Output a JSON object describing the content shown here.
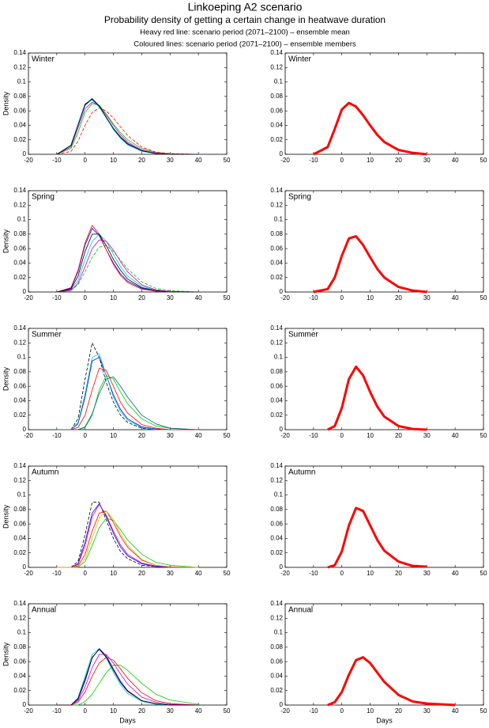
{
  "header": {
    "title": "Linkoeping A2 scenario",
    "subtitle": "Probability density of getting a certain change in heatwave duration",
    "notes": [
      "Heavy red line: scenario period (2071–2100) – ensemble mean",
      "Coloured lines: scenario period (2071–2100) – ensemble members"
    ]
  },
  "chart_data": [
    {
      "type": "line",
      "label": "Winter",
      "ylabel": "Density",
      "x": [
        -10,
        -5,
        -2.5,
        0,
        2.5,
        5,
        7.5,
        10,
        12.5,
        15,
        20,
        25,
        30,
        40
      ],
      "xlim": [
        -20,
        50
      ],
      "ylim": [
        0,
        0.14
      ],
      "xticks": [
        -20,
        -10,
        0,
        10,
        20,
        30,
        40,
        50
      ],
      "yticks": [
        0,
        0.02,
        0.04,
        0.06,
        0.08,
        0.1,
        0.12,
        0.14
      ],
      "series": [
        {
          "color": "#0000ff",
          "values": [
            0,
            0.012,
            0.04,
            0.068,
            0.076,
            0.066,
            0.05,
            0.035,
            0.023,
            0.014,
            0.005,
            0.001,
            0,
            0
          ]
        },
        {
          "color": "#00cc00",
          "values": [
            0,
            0.008,
            0.03,
            0.058,
            0.07,
            0.068,
            0.056,
            0.042,
            0.03,
            0.02,
            0.008,
            0.003,
            0.001,
            0
          ]
        },
        {
          "color": "#ff0000",
          "dash": true,
          "values": [
            0,
            0.004,
            0.018,
            0.04,
            0.058,
            0.064,
            0.06,
            0.05,
            0.038,
            0.026,
            0.01,
            0.003,
            0.001,
            0
          ]
        },
        {
          "color": "#00cccc",
          "values": [
            0,
            0.013,
            0.042,
            0.07,
            0.075,
            0.065,
            0.05,
            0.034,
            0.022,
            0.013,
            0.004,
            0.001,
            0,
            0
          ]
        },
        {
          "color": "#cc00cc",
          "values": [
            0,
            0.01,
            0.036,
            0.063,
            0.072,
            0.067,
            0.054,
            0.04,
            0.027,
            0.017,
            0.006,
            0.002,
            0,
            0
          ]
        },
        {
          "color": "#000000",
          "values": [
            0,
            0.012,
            0.04,
            0.069,
            0.077,
            0.067,
            0.051,
            0.036,
            0.024,
            0.015,
            0.005,
            0.001,
            0,
            0
          ]
        }
      ]
    },
    {
      "type": "line",
      "label": "Winter",
      "x": [
        -10,
        -5,
        -2.5,
        0,
        2.5,
        5,
        7.5,
        10,
        12.5,
        15,
        20,
        25,
        30,
        40
      ],
      "xlim": [
        -20,
        50
      ],
      "ylim": [
        0,
        0.14
      ],
      "xticks": [
        -20,
        -10,
        0,
        10,
        20,
        30,
        40,
        50
      ],
      "yticks": [
        0,
        0.02,
        0.04,
        0.06,
        0.08,
        0.1,
        0.12,
        0.14
      ],
      "series": [
        {
          "color": "#ff0000",
          "width": 3,
          "values": [
            0,
            0.01,
            0.035,
            0.062,
            0.071,
            0.066,
            0.054,
            0.04,
            0.027,
            0.017,
            0.006,
            0.002,
            0,
            null
          ]
        }
      ]
    },
    {
      "type": "line",
      "label": "Spring",
      "ylabel": "Density",
      "x": [
        -10,
        -5,
        -2.5,
        0,
        2.5,
        5,
        7.5,
        10,
        12.5,
        15,
        20,
        25,
        30,
        40
      ],
      "xlim": [
        -20,
        50
      ],
      "ylim": [
        0,
        0.14
      ],
      "xticks": [
        -20,
        -10,
        0,
        10,
        20,
        30,
        40,
        50
      ],
      "yticks": [
        0,
        0.02,
        0.04,
        0.06,
        0.08,
        0.1,
        0.12,
        0.14
      ],
      "series": [
        {
          "color": "#0000ff",
          "values": [
            0,
            0.005,
            0.028,
            0.065,
            0.088,
            0.078,
            0.058,
            0.04,
            0.025,
            0.015,
            0.005,
            0.001,
            0,
            0
          ]
        },
        {
          "color": "#00cc00",
          "dash": true,
          "values": [
            0,
            0.002,
            0.01,
            0.028,
            0.048,
            0.062,
            0.064,
            0.056,
            0.044,
            0.032,
            0.014,
            0.005,
            0.002,
            0
          ]
        },
        {
          "color": "#ff0000",
          "values": [
            0,
            0.006,
            0.03,
            0.068,
            0.092,
            0.08,
            0.058,
            0.038,
            0.023,
            0.013,
            0.004,
            0.001,
            0,
            0
          ]
        },
        {
          "color": "#00cccc",
          "values": [
            0,
            0.003,
            0.016,
            0.045,
            0.07,
            0.08,
            0.07,
            0.052,
            0.035,
            0.022,
            0.008,
            0.002,
            0,
            0
          ]
        },
        {
          "color": "#cc00cc",
          "values": [
            0,
            0.002,
            0.012,
            0.035,
            0.06,
            0.072,
            0.07,
            0.058,
            0.042,
            0.028,
            0.01,
            0.003,
            0.001,
            0
          ]
        },
        {
          "color": "#000000",
          "values": [
            0,
            0.004,
            0.022,
            0.056,
            0.08,
            0.08,
            0.064,
            0.045,
            0.03,
            0.018,
            0.006,
            0.002,
            0,
            0
          ]
        }
      ]
    },
    {
      "type": "line",
      "label": "Spring",
      "x": [
        -10,
        -5,
        -2.5,
        0,
        2.5,
        5,
        7.5,
        10,
        12.5,
        15,
        20,
        25,
        30,
        40
      ],
      "xlim": [
        -20,
        50
      ],
      "ylim": [
        0,
        0.14
      ],
      "xticks": [
        -20,
        -10,
        0,
        10,
        20,
        30,
        40,
        50
      ],
      "yticks": [
        0,
        0.02,
        0.04,
        0.06,
        0.08,
        0.1,
        0.12,
        0.14
      ],
      "series": [
        {
          "color": "#ff0000",
          "width": 3,
          "values": [
            0,
            0.004,
            0.02,
            0.05,
            0.074,
            0.077,
            0.065,
            0.048,
            0.032,
            0.02,
            0.007,
            0.002,
            0,
            null
          ]
        }
      ]
    },
    {
      "type": "line",
      "label": "Summer",
      "ylabel": "Density",
      "x": [
        -10,
        -5,
        -2.5,
        0,
        2.5,
        5,
        7.5,
        10,
        12.5,
        15,
        20,
        25,
        30,
        40
      ],
      "xlim": [
        -20,
        50
      ],
      "ylim": [
        0,
        0.14
      ],
      "xticks": [
        -20,
        -10,
        0,
        10,
        20,
        30,
        40,
        50
      ],
      "yticks": [
        0,
        0.02,
        0.04,
        0.06,
        0.08,
        0.1,
        0.12,
        0.14
      ],
      "series": [
        {
          "color": "#000000",
          "dash": true,
          "values": [
            0,
            0,
            0.015,
            0.07,
            0.12,
            0.1,
            0.065,
            0.038,
            0.02,
            0.01,
            0.002,
            0,
            0,
            0
          ]
        },
        {
          "color": "#0000ff",
          "values": [
            0,
            0,
            0.008,
            0.045,
            0.095,
            0.1,
            0.075,
            0.048,
            0.028,
            0.015,
            0.004,
            0.001,
            0,
            0
          ]
        },
        {
          "color": "#00cccc",
          "values": [
            0,
            0,
            0.01,
            0.05,
            0.1,
            0.105,
            0.075,
            0.045,
            0.025,
            0.013,
            0.003,
            0,
            0,
            0
          ]
        },
        {
          "color": "#00cc00",
          "values": [
            0,
            0,
            0,
            0.003,
            0.02,
            0.055,
            0.075,
            0.07,
            0.052,
            0.036,
            0.015,
            0.005,
            0.002,
            0
          ]
        },
        {
          "color": "#ff0000",
          "values": [
            0,
            0,
            0.003,
            0.02,
            0.055,
            0.085,
            0.082,
            0.06,
            0.038,
            0.023,
            0.007,
            0.002,
            0,
            0
          ]
        },
        {
          "color": "#006680",
          "values": [
            0,
            0,
            0,
            0.004,
            0.022,
            0.05,
            0.07,
            0.073,
            0.06,
            0.045,
            0.02,
            0.008,
            0.002,
            0
          ]
        }
      ]
    },
    {
      "type": "line",
      "label": "Summer",
      "x": [
        -10,
        -5,
        -2.5,
        0,
        2.5,
        5,
        7.5,
        10,
        12.5,
        15,
        20,
        25,
        30,
        40
      ],
      "xlim": [
        -20,
        50
      ],
      "ylim": [
        0,
        0.14
      ],
      "xticks": [
        -20,
        -10,
        0,
        10,
        20,
        30,
        40,
        50
      ],
      "yticks": [
        0,
        0.02,
        0.04,
        0.06,
        0.08,
        0.1,
        0.12,
        0.14
      ],
      "series": [
        {
          "color": "#ff0000",
          "width": 3,
          "values": [
            null,
            0,
            0.005,
            0.03,
            0.07,
            0.087,
            0.075,
            0.052,
            0.032,
            0.018,
            0.005,
            0.001,
            0,
            null
          ]
        }
      ]
    },
    {
      "type": "line",
      "label": "Autumn",
      "ylabel": "Density",
      "x": [
        -10,
        -5,
        -2.5,
        0,
        2.5,
        5,
        7.5,
        10,
        12.5,
        15,
        20,
        25,
        30,
        40
      ],
      "xlim": [
        -20,
        50
      ],
      "ylim": [
        0,
        0.14
      ],
      "xticks": [
        -20,
        -10,
        0,
        10,
        20,
        30,
        40,
        50
      ],
      "yticks": [
        0,
        0.02,
        0.04,
        0.06,
        0.08,
        0.1,
        0.12,
        0.14
      ],
      "series": [
        {
          "color": "#000000",
          "dash": true,
          "values": [
            0,
            0,
            0.008,
            0.045,
            0.09,
            0.09,
            0.065,
            0.04,
            0.022,
            0.012,
            0.003,
            0.001,
            0,
            0
          ]
        },
        {
          "color": "#0000ff",
          "values": [
            0,
            0,
            0.005,
            0.035,
            0.075,
            0.088,
            0.07,
            0.047,
            0.028,
            0.016,
            0.005,
            0.001,
            0,
            0
          ]
        },
        {
          "color": "#00cc00",
          "values": [
            0,
            0,
            0,
            0.008,
            0.03,
            0.055,
            0.068,
            0.065,
            0.052,
            0.038,
            0.018,
            0.007,
            0.003,
            0
          ]
        },
        {
          "color": "#ff0000",
          "values": [
            0,
            0,
            0.002,
            0.018,
            0.05,
            0.075,
            0.078,
            0.062,
            0.043,
            0.028,
            0.01,
            0.003,
            0.001,
            0
          ]
        },
        {
          "color": "#cc00cc",
          "values": [
            0,
            0,
            0.004,
            0.03,
            0.07,
            0.087,
            0.072,
            0.05,
            0.031,
            0.018,
            0.006,
            0.002,
            0,
            0
          ]
        },
        {
          "color": "#cccc00",
          "values": [
            0,
            0,
            0.001,
            0.012,
            0.04,
            0.068,
            0.078,
            0.066,
            0.047,
            0.031,
            0.011,
            0.003,
            0.001,
            0
          ]
        }
      ]
    },
    {
      "type": "line",
      "label": "Autumn",
      "x": [
        -10,
        -5,
        -2.5,
        0,
        2.5,
        5,
        7.5,
        10,
        12.5,
        15,
        20,
        25,
        30,
        40
      ],
      "xlim": [
        -20,
        50
      ],
      "ylim": [
        0,
        0.14
      ],
      "xticks": [
        -20,
        -10,
        0,
        10,
        20,
        30,
        40,
        50
      ],
      "yticks": [
        0,
        0.02,
        0.04,
        0.06,
        0.08,
        0.1,
        0.12,
        0.14
      ],
      "series": [
        {
          "color": "#ff0000",
          "width": 3,
          "values": [
            null,
            0,
            0.003,
            0.022,
            0.058,
            0.082,
            0.078,
            0.058,
            0.038,
            0.023,
            0.008,
            0.002,
            0.001,
            null
          ]
        }
      ]
    },
    {
      "type": "line",
      "label": "Annual",
      "ylabel": "Density",
      "xlabel": "Days",
      "x": [
        -10,
        -5,
        -2.5,
        0,
        2.5,
        5,
        7.5,
        10,
        12.5,
        15,
        20,
        25,
        30,
        40
      ],
      "xlim": [
        -20,
        50
      ],
      "ylim": [
        0,
        0.14
      ],
      "xticks": [
        -20,
        -10,
        0,
        10,
        20,
        30,
        40,
        50
      ],
      "yticks": [
        0,
        0.02,
        0.04,
        0.06,
        0.08,
        0.1,
        0.12,
        0.14
      ],
      "series": [
        {
          "color": "#00cccc",
          "values": [
            0,
            0,
            0.01,
            0.04,
            0.07,
            0.078,
            0.065,
            0.045,
            0.028,
            0.016,
            0.005,
            0.001,
            0,
            0
          ]
        },
        {
          "color": "#0000ff",
          "values": [
            0,
            0,
            0.008,
            0.033,
            0.065,
            0.078,
            0.068,
            0.05,
            0.033,
            0.02,
            0.006,
            0.002,
            0,
            0
          ]
        },
        {
          "color": "#00cc00",
          "values": [
            0,
            0,
            0,
            0.005,
            0.015,
            0.03,
            0.045,
            0.055,
            0.055,
            0.048,
            0.03,
            0.015,
            0.007,
            0.001
          ]
        },
        {
          "color": "#ff0000",
          "values": [
            0,
            0,
            0.004,
            0.018,
            0.04,
            0.058,
            0.066,
            0.062,
            0.05,
            0.037,
            0.017,
            0.006,
            0.002,
            0
          ]
        },
        {
          "color": "#cc00cc",
          "values": [
            0,
            0,
            0.006,
            0.025,
            0.052,
            0.07,
            0.07,
            0.058,
            0.043,
            0.029,
            0.011,
            0.004,
            0.001,
            0
          ]
        },
        {
          "color": "#000000",
          "values": [
            0,
            0,
            0.009,
            0.036,
            0.066,
            0.077,
            0.066,
            0.048,
            0.031,
            0.019,
            0.006,
            0.002,
            0,
            0
          ]
        }
      ]
    },
    {
      "type": "line",
      "label": "Annual",
      "xlabel": "Days",
      "x": [
        -10,
        -5,
        -2.5,
        0,
        2.5,
        5,
        7.5,
        10,
        12.5,
        15,
        20,
        25,
        30,
        40
      ],
      "xlim": [
        -20,
        50
      ],
      "ylim": [
        0,
        0.14
      ],
      "xticks": [
        -20,
        -10,
        0,
        10,
        20,
        30,
        40,
        50
      ],
      "yticks": [
        0,
        0.02,
        0.04,
        0.06,
        0.08,
        0.1,
        0.12,
        0.14
      ],
      "series": [
        {
          "color": "#ff0000",
          "width": 3,
          "values": [
            null,
            0,
            0.004,
            0.018,
            0.042,
            0.062,
            0.066,
            0.058,
            0.045,
            0.032,
            0.014,
            0.005,
            0.002,
            0
          ]
        }
      ]
    }
  ]
}
